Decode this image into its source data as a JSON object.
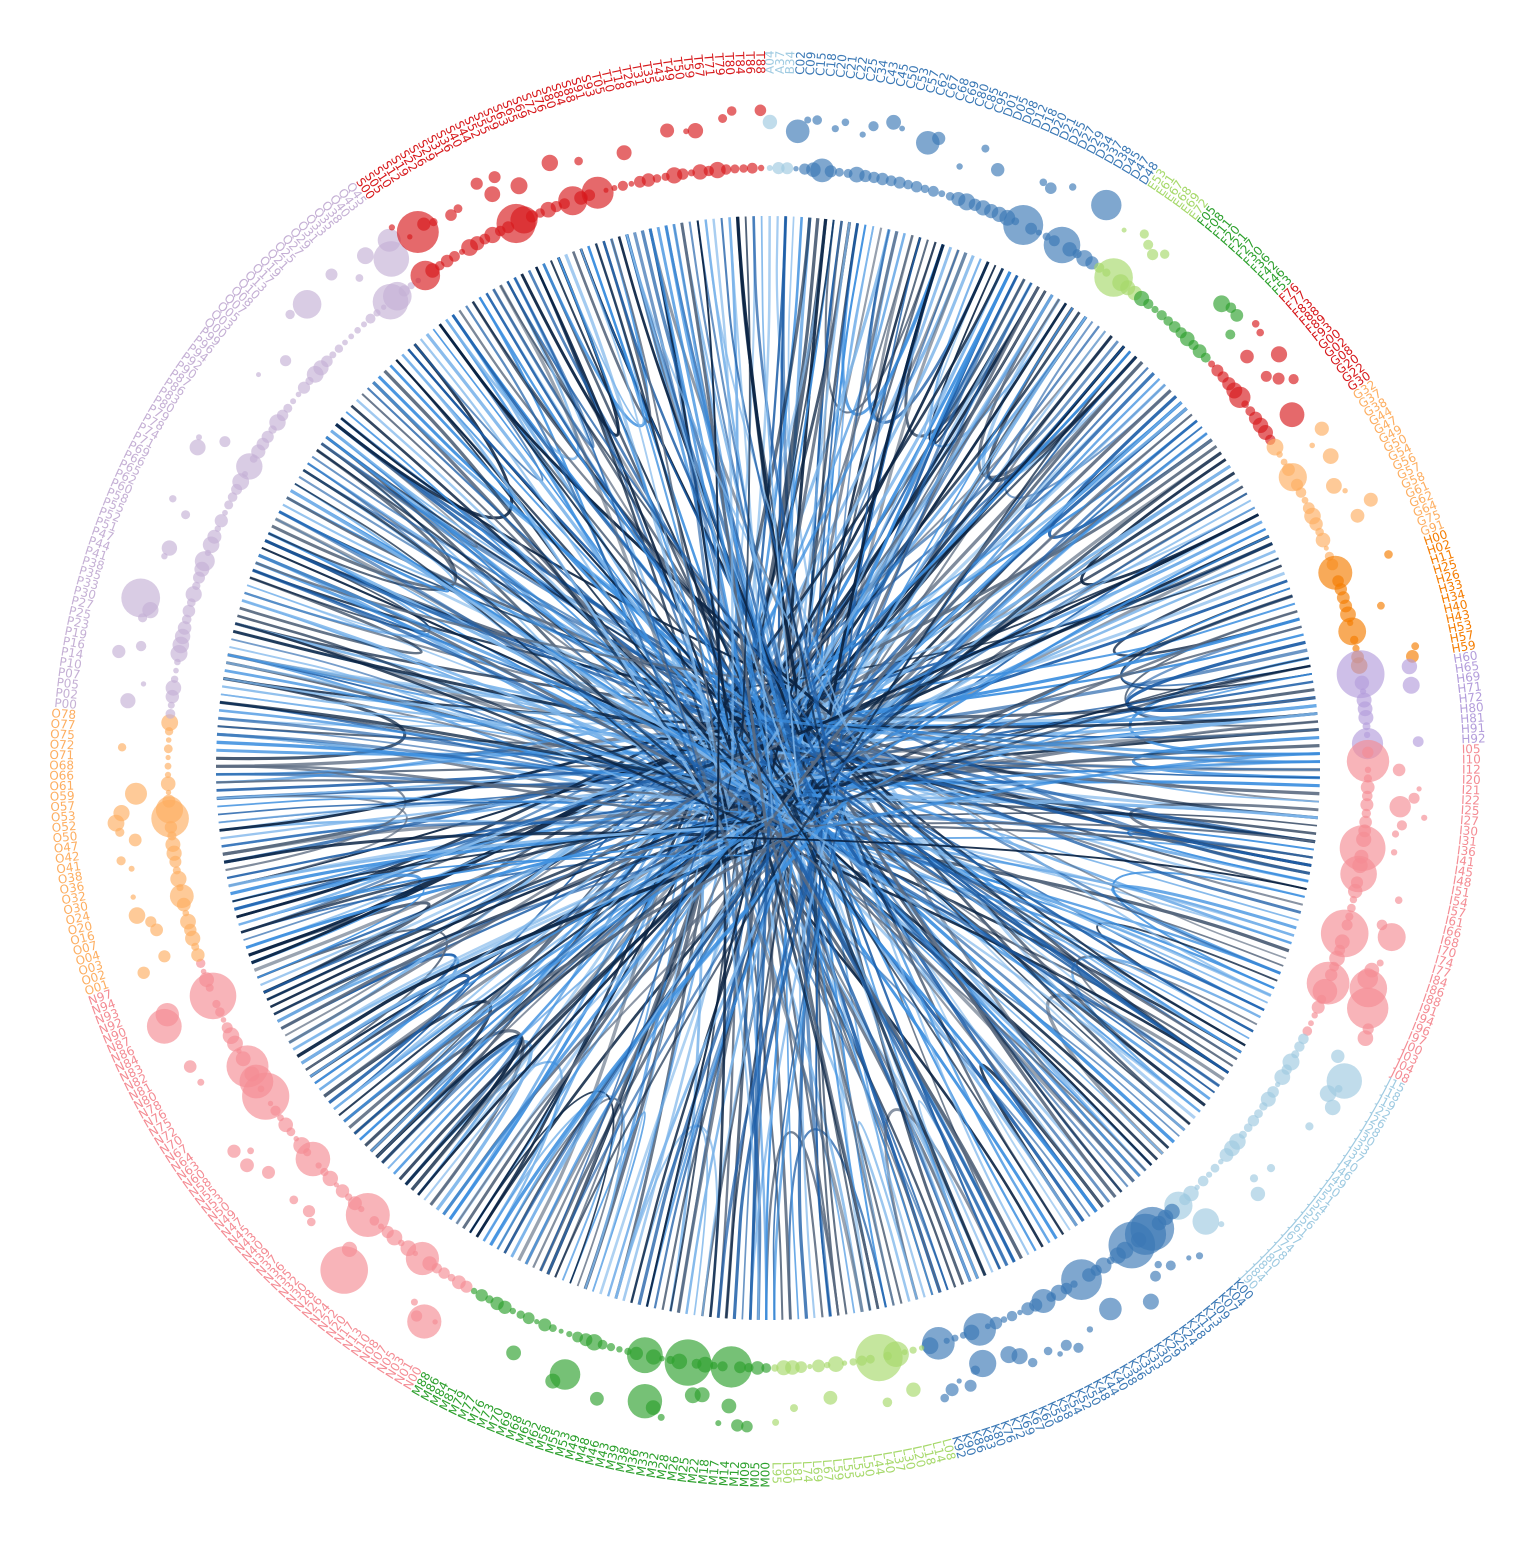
{
  "diagram": {
    "type": "radial-dendrogram-with-hierarchical-edge-bundles",
    "edge_colors": [
      "#0b2444",
      "#1f5fa8",
      "#3d8fdf",
      "#7db5ea",
      "#5a6a80"
    ],
    "groups": [
      {
        "id": "A",
        "color": "#9ecae1",
        "labels": [
          "A04",
          "A37",
          "B34"
        ]
      },
      {
        "id": "C",
        "color": "#3a78b5",
        "labels": [
          "C02",
          "C09",
          "C15",
          "C18",
          "C20",
          "C21",
          "C22",
          "C25",
          "C34",
          "C43",
          "C45",
          "C50",
          "C53",
          "C57",
          "C62",
          "C67",
          "C68",
          "C69",
          "C80",
          "C85",
          "C95",
          "D01",
          "D05",
          "D08",
          "D12",
          "D18",
          "D20",
          "D21",
          "D25",
          "D27",
          "D29",
          "D34",
          "D37",
          "D38",
          "D45",
          "D47",
          "D48"
        ]
      },
      {
        "id": "E",
        "color": "#a6d96a",
        "labels": [
          "E53",
          "E61",
          "E67",
          "E68",
          "E69",
          "E72"
        ]
      },
      {
        "id": "F",
        "color": "#2ca02c",
        "labels": [
          "F05",
          "F08",
          "F11",
          "F20",
          "F21",
          "F27",
          "F30",
          "F36",
          "F42",
          "F46",
          "F53"
        ]
      },
      {
        "id": "F2",
        "color": "#d7191c",
        "labels": [
          "F76",
          "F77",
          "F83",
          "F88",
          "F89",
          "F93",
          "G00",
          "G02",
          "G08",
          "G20",
          "G22",
          "G30"
        ]
      },
      {
        "id": "G",
        "color": "#fdae61",
        "labels": [
          "G32",
          "G37",
          "G38",
          "G44",
          "G47",
          "G49",
          "G50",
          "G54",
          "G56",
          "G57",
          "G58",
          "G61",
          "G62",
          "G64",
          "G75",
          "G91"
        ]
      },
      {
        "id": "H",
        "color": "#f57c00",
        "labels": [
          "H00",
          "H02",
          "H11",
          "H25",
          "H26",
          "H33",
          "H34",
          "H40",
          "H43",
          "H53",
          "H57",
          "H59"
        ]
      },
      {
        "id": "H2",
        "color": "#b39ddb",
        "labels": [
          "H60",
          "H65",
          "H69",
          "H71",
          "H72",
          "H80",
          "H81",
          "H91",
          "H92"
        ]
      },
      {
        "id": "I",
        "color": "#f48c94",
        "labels": [
          "I05",
          "I10",
          "I12",
          "I20",
          "I21",
          "I22",
          "I25",
          "I27",
          "I30",
          "I31",
          "I36",
          "I41",
          "I45",
          "I48",
          "I51",
          "I54",
          "I57",
          "I61",
          "I66",
          "I68",
          "I70",
          "I74",
          "I77",
          "I84",
          "I86",
          "I88",
          "I91",
          "I94",
          "I96",
          "I97",
          "J00",
          "J03",
          "J04",
          "J08"
        ]
      },
      {
        "id": "J",
        "color": "#9ecae1",
        "labels": [
          "J15",
          "J18",
          "J19",
          "J22",
          "J26",
          "J28",
          "J30",
          "J33",
          "J37",
          "J40",
          "J46",
          "J49",
          "J50",
          "J51",
          "J54",
          "J55",
          "J56",
          "J61",
          "J67",
          "J74",
          "J78",
          "J80",
          "J81",
          "J84",
          "J90"
        ]
      },
      {
        "id": "K",
        "color": "#3a78b5",
        "labels": [
          "K00",
          "K04",
          "K07",
          "K09",
          "K13",
          "K15",
          "K18",
          "K24",
          "K25",
          "K29",
          "K30",
          "K33",
          "K35",
          "K36",
          "K38",
          "K40",
          "K44",
          "K48",
          "K50",
          "K52",
          "K54",
          "K58",
          "K59",
          "K60",
          "K67",
          "K69",
          "K72",
          "K76",
          "K80",
          "K83",
          "K86",
          "K90",
          "K92"
        ]
      },
      {
        "id": "L",
        "color": "#a6d96a",
        "labels": [
          "L08",
          "L14",
          "L18",
          "L20",
          "L30",
          "L37",
          "L40",
          "L44",
          "L50",
          "L53",
          "L55",
          "L59",
          "L67",
          "L69",
          "L74",
          "L81",
          "L90",
          "L95"
        ]
      },
      {
        "id": "M",
        "color": "#2ca02c",
        "labels": [
          "M00",
          "M05",
          "M09",
          "M12",
          "M14",
          "M17",
          "M18",
          "M22",
          "M25",
          "M26",
          "M28",
          "M32",
          "M33",
          "M36",
          "M38",
          "M39",
          "M43",
          "M46",
          "M48",
          "M49",
          "M53",
          "M55",
          "M58",
          "M62",
          "M65",
          "M68",
          "M69",
          "M70",
          "M73",
          "M76",
          "M77",
          "M79",
          "M81",
          "M84",
          "M86",
          "M88"
        ]
      },
      {
        "id": "N",
        "color": "#f48c94",
        "labels": [
          "N00",
          "N01",
          "N03",
          "N05",
          "N07",
          "N08",
          "N10",
          "N13",
          "N17",
          "N20",
          "N22",
          "N24",
          "N26",
          "N28",
          "N30",
          "N32",
          "N35",
          "N36",
          "N37",
          "N39",
          "N40",
          "N43",
          "N45",
          "N47",
          "N49",
          "N50",
          "N53",
          "N55",
          "N58",
          "N60",
          "N63",
          "N64",
          "N67",
          "N70",
          "N72",
          "N75",
          "N76",
          "N78",
          "N80",
          "N81",
          "N82",
          "N83",
          "N84",
          "N86",
          "N87",
          "N90",
          "N92",
          "N93",
          "N94",
          "N97"
        ]
      },
      {
        "id": "O",
        "color": "#fdae61",
        "labels": [
          "O01",
          "O02",
          "O03",
          "O04",
          "O07",
          "O16",
          "O20",
          "O24",
          "O30",
          "O32",
          "O36",
          "O38",
          "O41",
          "O42",
          "O47",
          "O50",
          "O52",
          "O53",
          "O57",
          "O59",
          "O61",
          "O66",
          "O68",
          "O71",
          "O72",
          "O75",
          "O77",
          "O78"
        ]
      },
      {
        "id": "P",
        "color": "#c5b0d5",
        "labels": [
          "P00",
          "P02",
          "P05",
          "P07",
          "P10",
          "P14",
          "P16",
          "P19",
          "P23",
          "P25",
          "P27",
          "P30",
          "P33",
          "P35",
          "P38",
          "P41",
          "P44",
          "P47",
          "P51",
          "P52",
          "P55",
          "P58",
          "P60",
          "P62",
          "P65",
          "P66",
          "P69",
          "P71",
          "P74",
          "P78",
          "P79",
          "P80",
          "P83",
          "P86",
          "P87",
          "P90",
          "P92",
          "P94",
          "P96",
          "P99",
          "Q00",
          "Q03",
          "Q05",
          "Q07",
          "Q08",
          "Q10",
          "Q13",
          "Q17",
          "Q19",
          "Q21",
          "Q25",
          "Q27",
          "Q29",
          "Q31",
          "Q33",
          "Q35",
          "Q38",
          "Q40",
          "Q43",
          "Q45"
        ]
      },
      {
        "id": "S",
        "color": "#d7191c",
        "labels": [
          "S00",
          "S05",
          "S10",
          "S12",
          "S19",
          "S22",
          "S26",
          "S29",
          "S31",
          "S36",
          "S40",
          "S44",
          "S52",
          "S55",
          "S59",
          "S63",
          "S65",
          "S69",
          "S72",
          "S76",
          "S80",
          "S84",
          "S88",
          "S91",
          "S93",
          "T05",
          "T10",
          "T18",
          "T26",
          "T31",
          "T35",
          "T43",
          "T49",
          "T50",
          "T59",
          "T67",
          "T71",
          "T79",
          "T80",
          "T84",
          "T86",
          "T88"
        ]
      }
    ]
  }
}
